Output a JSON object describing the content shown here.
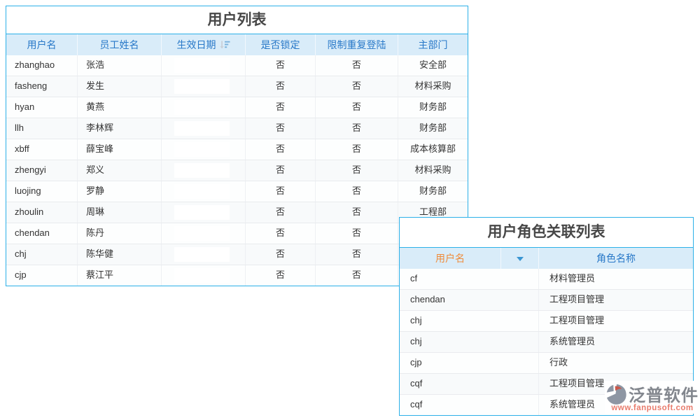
{
  "colors": {
    "panel_border": "#2cb0e8",
    "header_bg": "#d9ecf9",
    "header_text_blue": "#2878c8",
    "header_text_orange": "#ef8b3a",
    "title_text": "#474747",
    "cell_text": "#333333",
    "watermark_gray": "#83878e",
    "watermark_red": "#e97c6d"
  },
  "user_table": {
    "title": "用户列表",
    "columns": [
      "用户名",
      "员工姓名",
      "生效日期",
      "是否锁定",
      "限制重复登陆",
      "主部门"
    ],
    "rows": [
      {
        "username": "zhanghao",
        "name": "张浩",
        "date": "",
        "locked": "否",
        "repeat_login": "否",
        "dept": "安全部"
      },
      {
        "username": "fasheng",
        "name": "发生",
        "date": "",
        "locked": "否",
        "repeat_login": "否",
        "dept": "材料采购"
      },
      {
        "username": "hyan",
        "name": "黄燕",
        "date": "",
        "locked": "否",
        "repeat_login": "否",
        "dept": "财务部"
      },
      {
        "username": "llh",
        "name": "李林辉",
        "date": "",
        "locked": "否",
        "repeat_login": "否",
        "dept": "财务部"
      },
      {
        "username": "xbff",
        "name": "薛宝峰",
        "date": "",
        "locked": "否",
        "repeat_login": "否",
        "dept": "成本核算部"
      },
      {
        "username": "zhengyi",
        "name": "郑义",
        "date": "",
        "locked": "否",
        "repeat_login": "否",
        "dept": "材料采购"
      },
      {
        "username": "luojing",
        "name": "罗静",
        "date": "",
        "locked": "否",
        "repeat_login": "否",
        "dept": "财务部"
      },
      {
        "username": "zhoulin",
        "name": "周琳",
        "date": "",
        "locked": "否",
        "repeat_login": "否",
        "dept": "工程部"
      },
      {
        "username": "chendan",
        "name": "陈丹",
        "date": "",
        "locked": "否",
        "repeat_login": "否",
        "dept": ""
      },
      {
        "username": "chj",
        "name": "陈华健",
        "date": "",
        "locked": "否",
        "repeat_login": "否",
        "dept": ""
      },
      {
        "username": "cjp",
        "name": "蔡江平",
        "date": "",
        "locked": "否",
        "repeat_login": "否",
        "dept": ""
      }
    ]
  },
  "role_table": {
    "title": "用户角色关联列表",
    "columns": [
      "用户名",
      "角色名称"
    ],
    "rows": [
      {
        "username": "cf",
        "role": "材料管理员"
      },
      {
        "username": "chendan",
        "role": "工程项目管理"
      },
      {
        "username": "chj",
        "role": "工程项目管理"
      },
      {
        "username": "chj",
        "role": "系统管理员"
      },
      {
        "username": "cjp",
        "role": "行政"
      },
      {
        "username": "cqf",
        "role": "工程项目管理"
      },
      {
        "username": "cqf",
        "role": "系统管理员"
      }
    ]
  },
  "watermark": {
    "brand": "泛普软件",
    "url": "www.fanpusoft.com"
  }
}
